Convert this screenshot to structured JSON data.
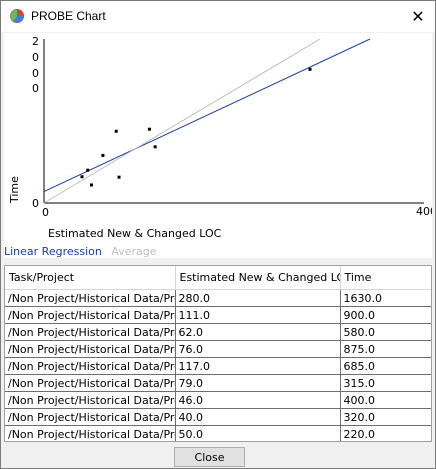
{
  "window": {
    "title": "PROBE Chart",
    "app_icon": "probe-chart-icon",
    "close_glyph": "✕"
  },
  "chart_data": {
    "type": "scatter",
    "xlabel": "Estimated New & Changed LOC",
    "ylabel": "Time",
    "xlim": [
      0,
      400
    ],
    "ylim": [
      0,
      2000
    ],
    "x_tick_labels": [
      "0",
      "400"
    ],
    "y_tick_labels": [
      "0",
      "0",
      "0",
      "0",
      "2"
    ],
    "points": [
      {
        "x": 280.0,
        "y": 1630.0
      },
      {
        "x": 111.0,
        "y": 900.0
      },
      {
        "x": 62.0,
        "y": 580.0
      },
      {
        "x": 76.0,
        "y": 875.0
      },
      {
        "x": 117.0,
        "y": 685.0
      },
      {
        "x": 79.0,
        "y": 315.0
      },
      {
        "x": 46.0,
        "y": 400.0
      },
      {
        "x": 40.0,
        "y": 320.0
      },
      {
        "x": 50.0,
        "y": 220.0
      }
    ],
    "series": [
      {
        "name": "Linear Regression",
        "color": "#1c3ea0"
      },
      {
        "name": "Average",
        "color": "#bdbdbd"
      }
    ]
  },
  "table": {
    "columns": [
      "Task/Project",
      "Estimated New & Changed LOC",
      "Time"
    ],
    "rows": [
      [
        "/Non Project/Historical Data/Pro...",
        "280.0",
        "1630.0"
      ],
      [
        "/Non Project/Historical Data/Pro...",
        "111.0",
        "900.0"
      ],
      [
        "/Non Project/Historical Data/Pro...",
        "62.0",
        "580.0"
      ],
      [
        "/Non Project/Historical Data/Pro...",
        "76.0",
        "875.0"
      ],
      [
        "/Non Project/Historical Data/Pro...",
        "117.0",
        "685.0"
      ],
      [
        "/Non Project/Historical Data/Pro...",
        "79.0",
        "315.0"
      ],
      [
        "/Non Project/Historical Data/Pro...",
        "46.0",
        "400.0"
      ],
      [
        "/Non Project/Historical Data/Pro...",
        "40.0",
        "320.0"
      ],
      [
        "/Non Project/Historical Data/Pro...",
        "50.0",
        "220.0"
      ]
    ]
  },
  "buttons": {
    "close_label": "Close"
  }
}
